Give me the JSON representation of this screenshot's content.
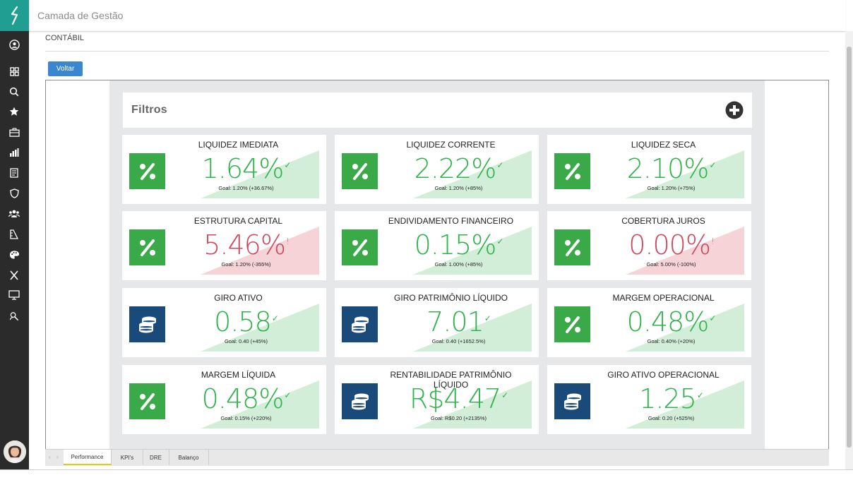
{
  "app": {
    "title": "Camada de Gestão"
  },
  "breadcrumb": "CONTÁBIL",
  "actions": {
    "back_label": "Voltar"
  },
  "filters": {
    "label": "Filtros"
  },
  "sidebar": {
    "items": [
      {
        "name": "user-icon"
      },
      {
        "name": "dashboard-icon"
      },
      {
        "name": "search-icon"
      },
      {
        "name": "star-icon"
      },
      {
        "name": "briefcase-icon"
      },
      {
        "name": "bar-chart-icon"
      },
      {
        "name": "report-icon"
      },
      {
        "name": "shield-icon"
      },
      {
        "name": "team-icon"
      },
      {
        "name": "ruler-icon"
      },
      {
        "name": "palette-icon"
      },
      {
        "name": "x-icon"
      },
      {
        "name": "monitor-icon"
      },
      {
        "name": "support-icon"
      }
    ]
  },
  "colors": {
    "good": "#2fb34a",
    "bad": "#d0475b",
    "percent_icon_bg": "#3aaa48",
    "coins_icon_bg": "#1a4a7a",
    "good_tri": "#d3eed8",
    "bad_tri": "#f5d3d7",
    "accent": "#1f9e91"
  },
  "cards": [
    {
      "title": "LIQUIDEZ IMEDIATA",
      "value": "1.64%",
      "goal": "Goal: 1.20% (+36.67%)",
      "status": "good",
      "icon": "percent-icon"
    },
    {
      "title": "LIQUIDEZ CORRENTE",
      "value": "2.22%",
      "goal": "Goal: 1.20% (+85%)",
      "status": "good",
      "icon": "percent-icon"
    },
    {
      "title": "LIQUIDEZ SECA",
      "value": "2.10%",
      "goal": "Goal: 1.20% (+75%)",
      "status": "good",
      "icon": "percent-icon"
    },
    {
      "title": "ESTRUTURA CAPITAL",
      "value": "5.46%",
      "goal": "Goal: 1.20% (-355%)",
      "status": "bad",
      "icon": "percent-icon"
    },
    {
      "title": "ENDIVIDAMENTO FINANCEIRO",
      "value": "0.15%",
      "goal": "Goal: 1.00% (+85%)",
      "status": "good",
      "icon": "percent-icon"
    },
    {
      "title": "COBERTURA JUROS",
      "value": "0.00%",
      "goal": "Goal: 5.00% (-100%)",
      "status": "bad",
      "icon": "percent-icon"
    },
    {
      "title": "GIRO ATIVO",
      "value": "0.58",
      "goal": "Goal: 0.40 (+45%)",
      "status": "good",
      "icon": "coins-icon"
    },
    {
      "title": "GIRO PATRIMÔNIO LÍQUIDO",
      "value": "7.01",
      "goal": "Goal: 0.40 (+1652.5%)",
      "status": "good",
      "icon": "coins-icon"
    },
    {
      "title": "MARGEM OPERACIONAL",
      "value": "0.48%",
      "goal": "Goal: 0.40% (+20%)",
      "status": "good",
      "icon": "percent-icon"
    },
    {
      "title": "MARGEM LÍQUIDA",
      "value": "0.48%",
      "goal": "Goal: 0.15% (+220%)",
      "status": "good",
      "icon": "percent-icon"
    },
    {
      "title": "RENTABILIDADE PATRIMÔNIO LÍQUIDO",
      "value": "R$4.47",
      "goal": "Goal: R$0.20 (+2135%)",
      "status": "good",
      "icon": "coins-icon"
    },
    {
      "title": "GIRO ATIVO OPERACIONAL",
      "value": "1.25",
      "goal": "Goal: 0.20 (+525%)",
      "status": "good",
      "icon": "coins-icon"
    }
  ],
  "tabs": [
    {
      "label": "Performance",
      "active": true
    },
    {
      "label": "KPI's",
      "active": false
    },
    {
      "label": "DRE",
      "active": false
    },
    {
      "label": "Balanço",
      "active": false
    }
  ]
}
